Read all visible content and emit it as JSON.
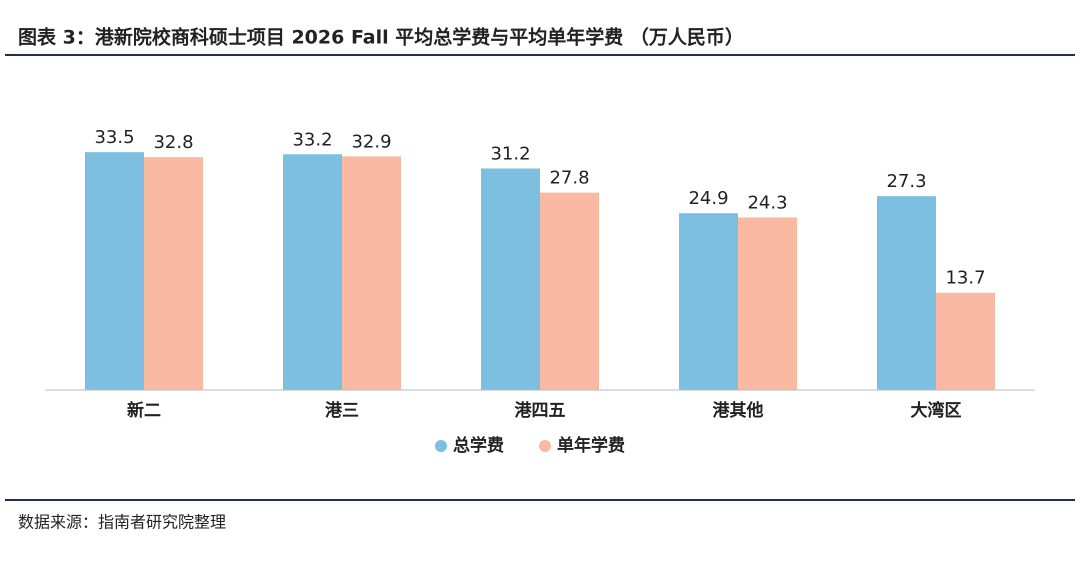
{
  "chart_data": {
    "type": "bar",
    "title": "图表 3：港新院校商科硕士项目 2026 Fall 平均总学费与平均单年学费 （万人民币）",
    "categories": [
      "新二",
      "港三",
      "港四五",
      "港其他",
      "大湾区"
    ],
    "series": [
      {
        "name": "总学费",
        "color": "#7dbfe0",
        "values": [
          33.5,
          33.2,
          31.2,
          24.9,
          27.3
        ]
      },
      {
        "name": "单年学费",
        "color": "#f9b9a2",
        "values": [
          32.8,
          32.9,
          27.8,
          24.3,
          13.7
        ]
      }
    ],
    "source": "数据来源：指南者研究院整理"
  }
}
